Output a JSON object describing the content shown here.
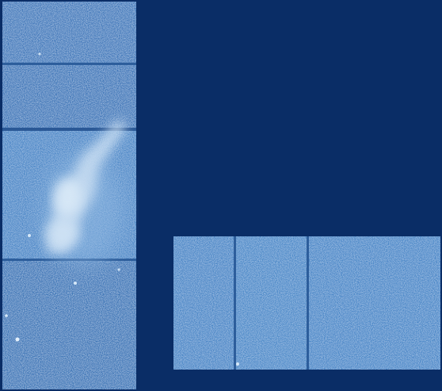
{
  "image": {
    "background_color": "#0a2d66",
    "detector_color": "#4a86c6",
    "noise_light_color": "#8ab8e8",
    "noise_dark_color": "#2a5a9a",
    "gap_color": "#2d5e9c",
    "emission_color": "#c9def2",
    "left_detector_chips": 4,
    "right_detector_chips": 3
  }
}
